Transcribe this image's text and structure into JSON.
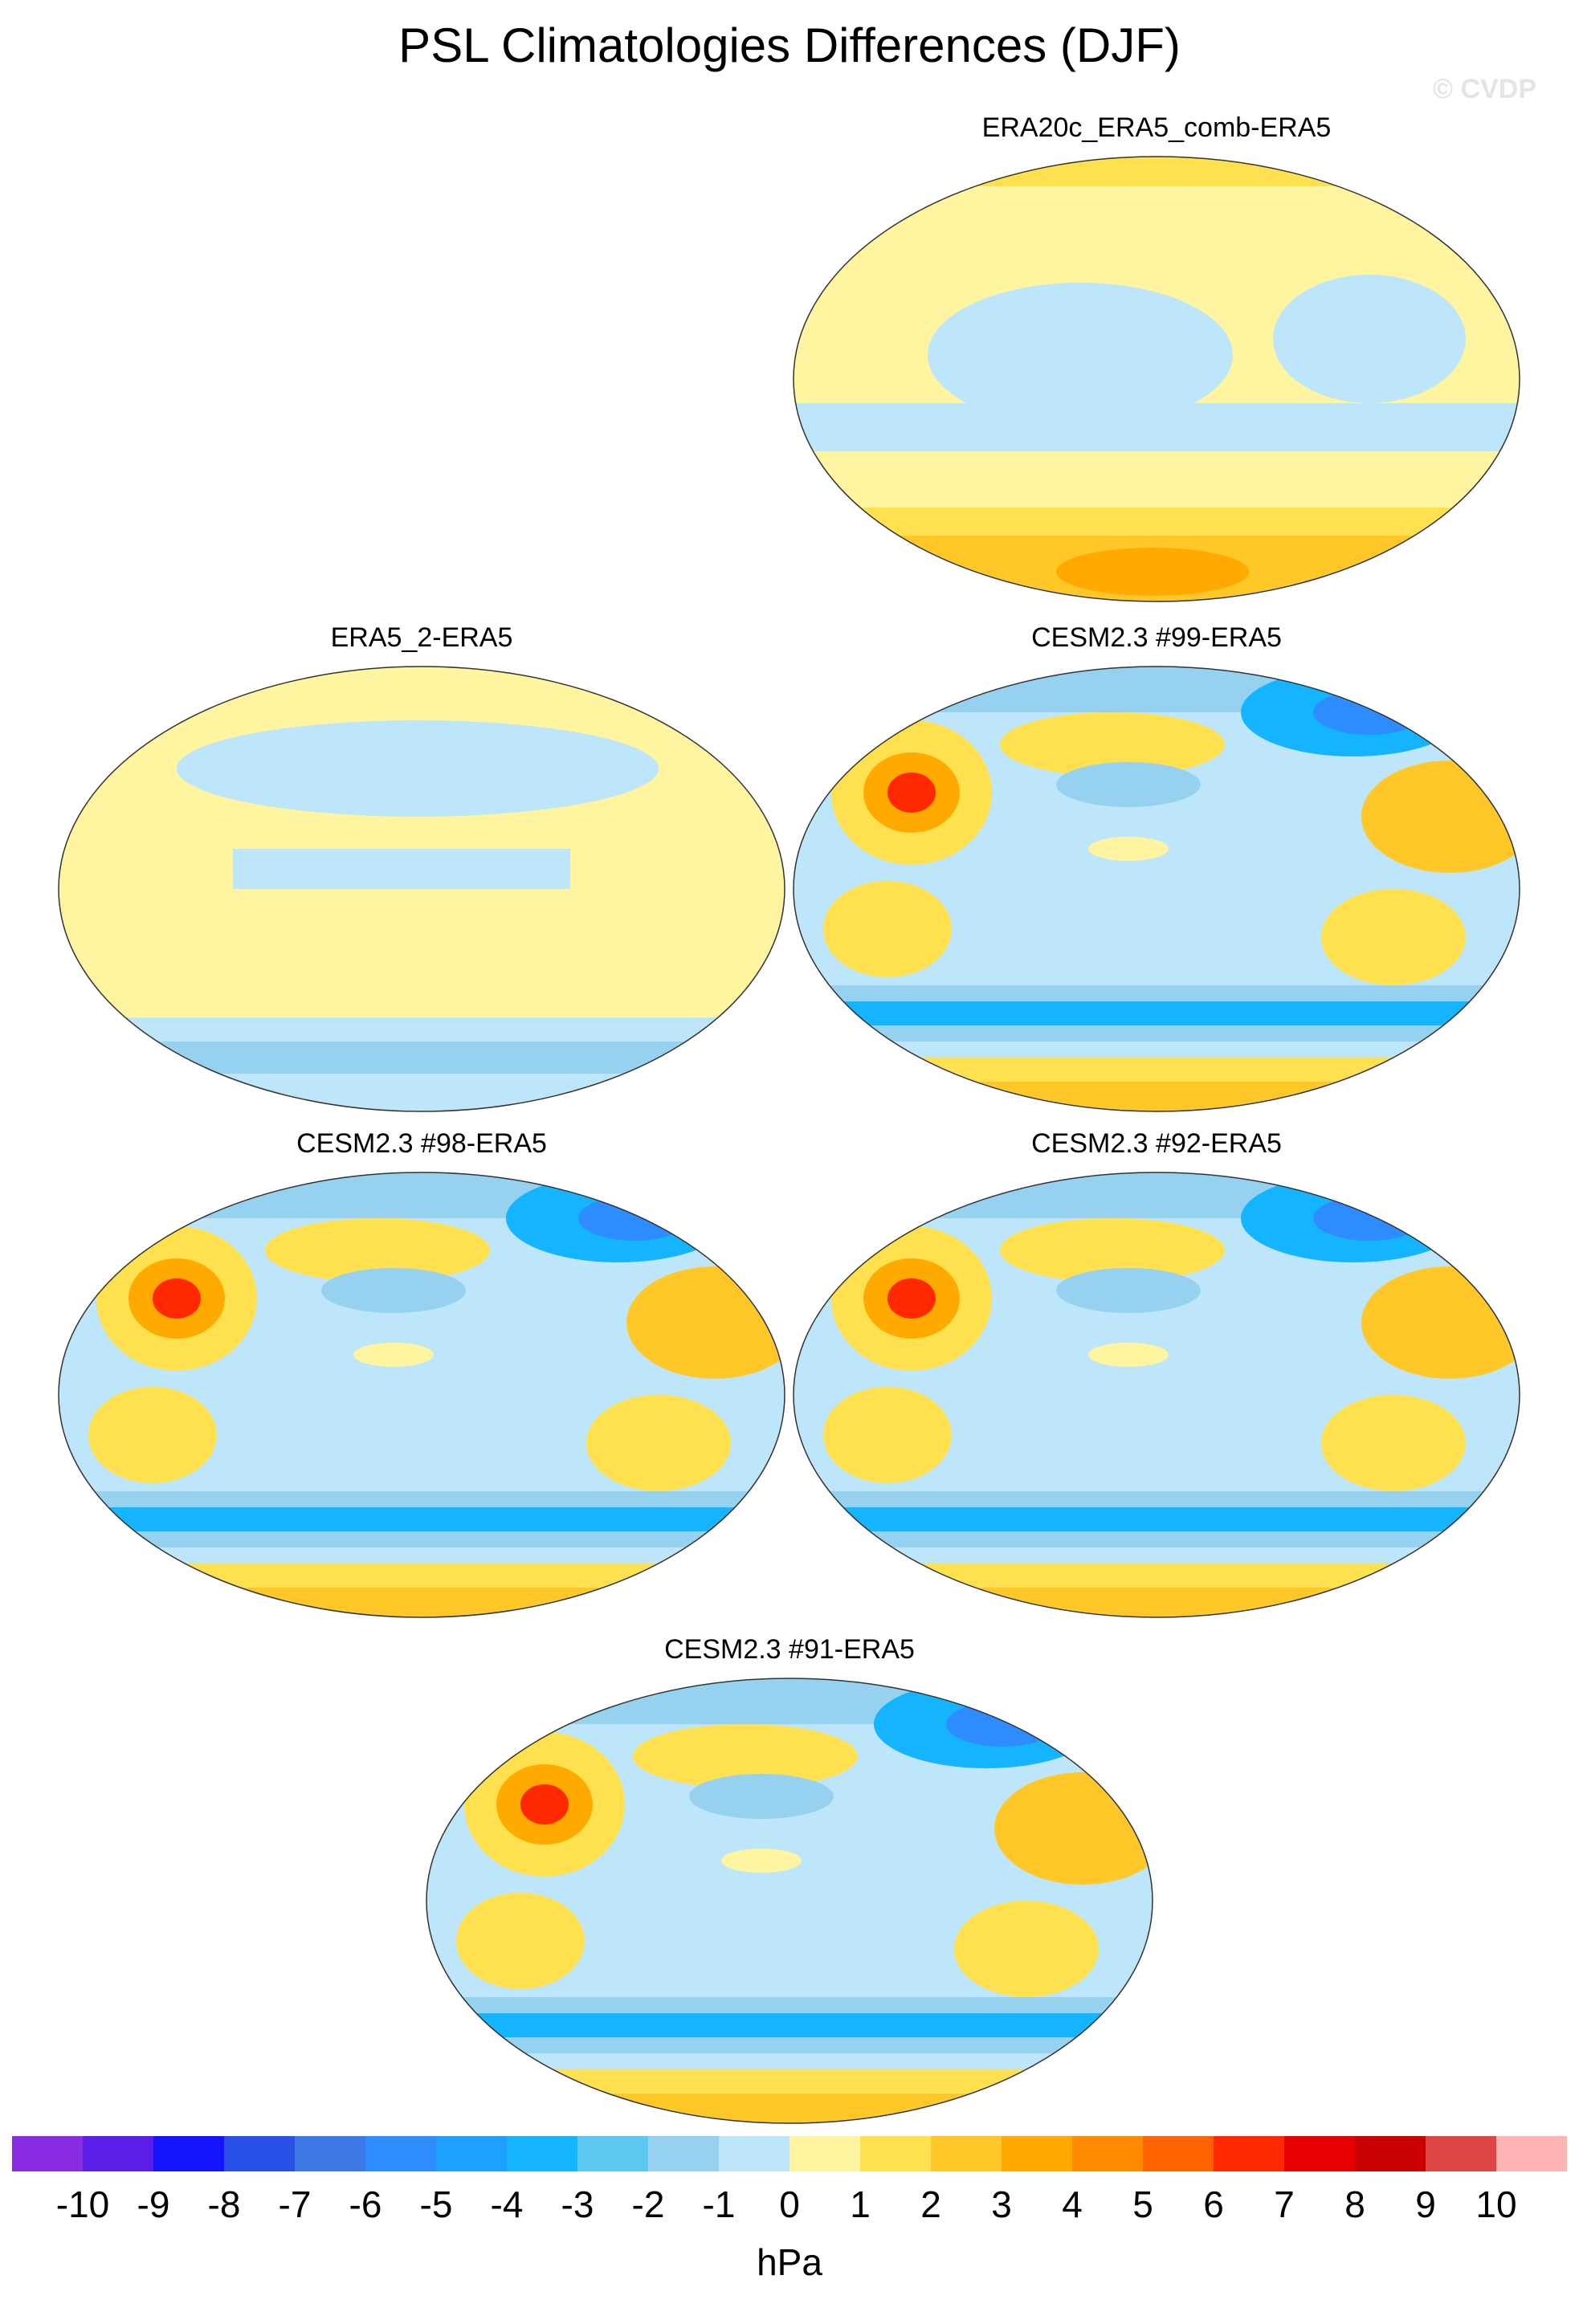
{
  "title": "PSL Climatologies Differences (DJF)",
  "watermark": "© CVDP",
  "panels": [
    {
      "label": "ERA20c_ERA5_comb-ERA5",
      "style": "warm-south"
    },
    {
      "label": "ERA5_2-ERA5",
      "style": "mild"
    },
    {
      "label": "CESM2.3 #99-ERA5",
      "style": "model"
    },
    {
      "label": "CESM2.3 #98-ERA5",
      "style": "model"
    },
    {
      "label": "CESM2.3 #92-ERA5",
      "style": "model"
    },
    {
      "label": "CESM2.3 #91-ERA5",
      "style": "model"
    }
  ],
  "colorbar": {
    "units": "hPa",
    "ticks": [
      "-10",
      "-9",
      "-8",
      "-7",
      "-6",
      "-5",
      "-4",
      "-3",
      "-2",
      "-1",
      "0",
      "1",
      "2",
      "3",
      "4",
      "5",
      "6",
      "7",
      "8",
      "9",
      "10"
    ],
    "colors": [
      "#8a2be2",
      "#5a1ee8",
      "#1414ff",
      "#2850e6",
      "#3c78e6",
      "#2d8cff",
      "#1ea0ff",
      "#14b4ff",
      "#5ac8f0",
      "#96d2f0",
      "#bee6fa",
      "#fff5a0",
      "#ffe150",
      "#ffc828",
      "#ffaa00",
      "#ff8c00",
      "#ff6400",
      "#ff2800",
      "#e60000",
      "#c80000",
      "#dc4646",
      "#ffb4b4"
    ]
  }
}
